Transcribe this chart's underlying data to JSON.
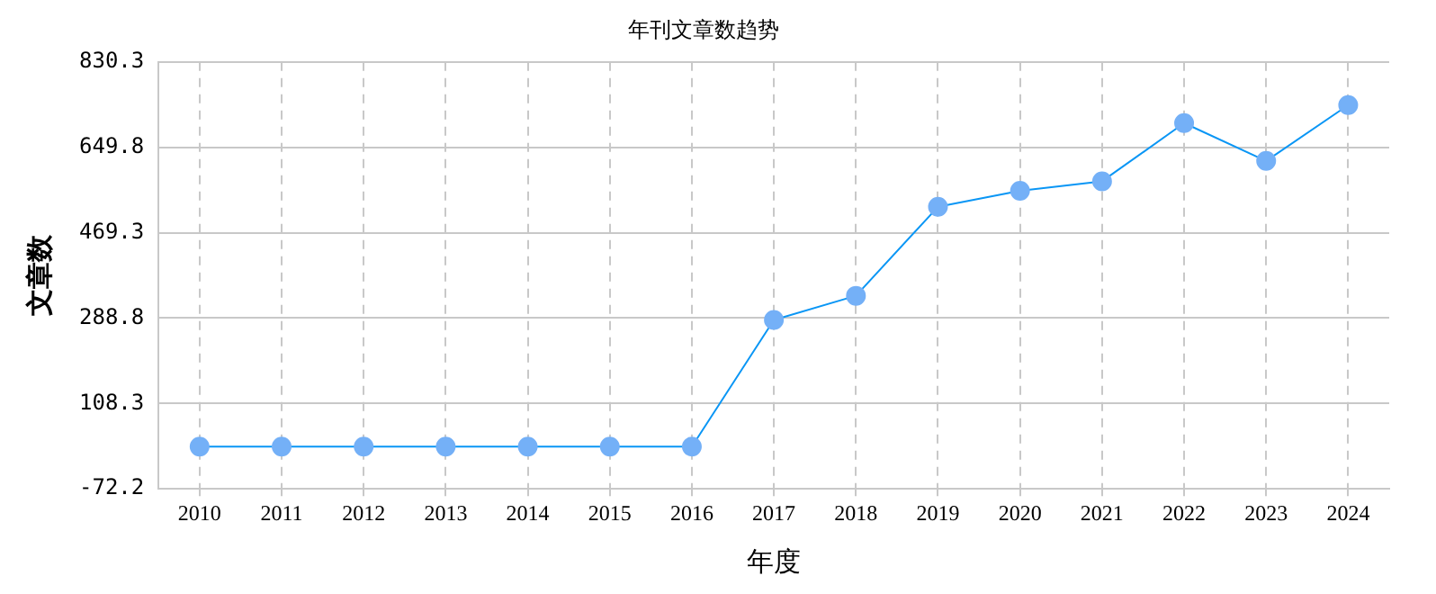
{
  "chart_data": {
    "type": "line",
    "title": "年刊文章数趋势",
    "xlabel": "年度",
    "ylabel": "文章数",
    "categories": [
      "2010",
      "2011",
      "2012",
      "2013",
      "2014",
      "2015",
      "2016",
      "2017",
      "2018",
      "2019",
      "2020",
      "2021",
      "2022",
      "2023",
      "2024"
    ],
    "series": [
      {
        "color": "#0a96f5",
        "values": [
          17,
          17,
          17,
          17,
          17,
          17,
          17,
          285,
          336,
          524,
          558,
          578,
          701,
          621,
          739
        ]
      }
    ],
    "ylim": [
      -72.2,
      830.3
    ],
    "yticks": [
      -72.2,
      108.3,
      288.8,
      469.3,
      649.8,
      830.3
    ],
    "grid": true,
    "legend": false,
    "marker": "circle",
    "line_style": "solid"
  }
}
